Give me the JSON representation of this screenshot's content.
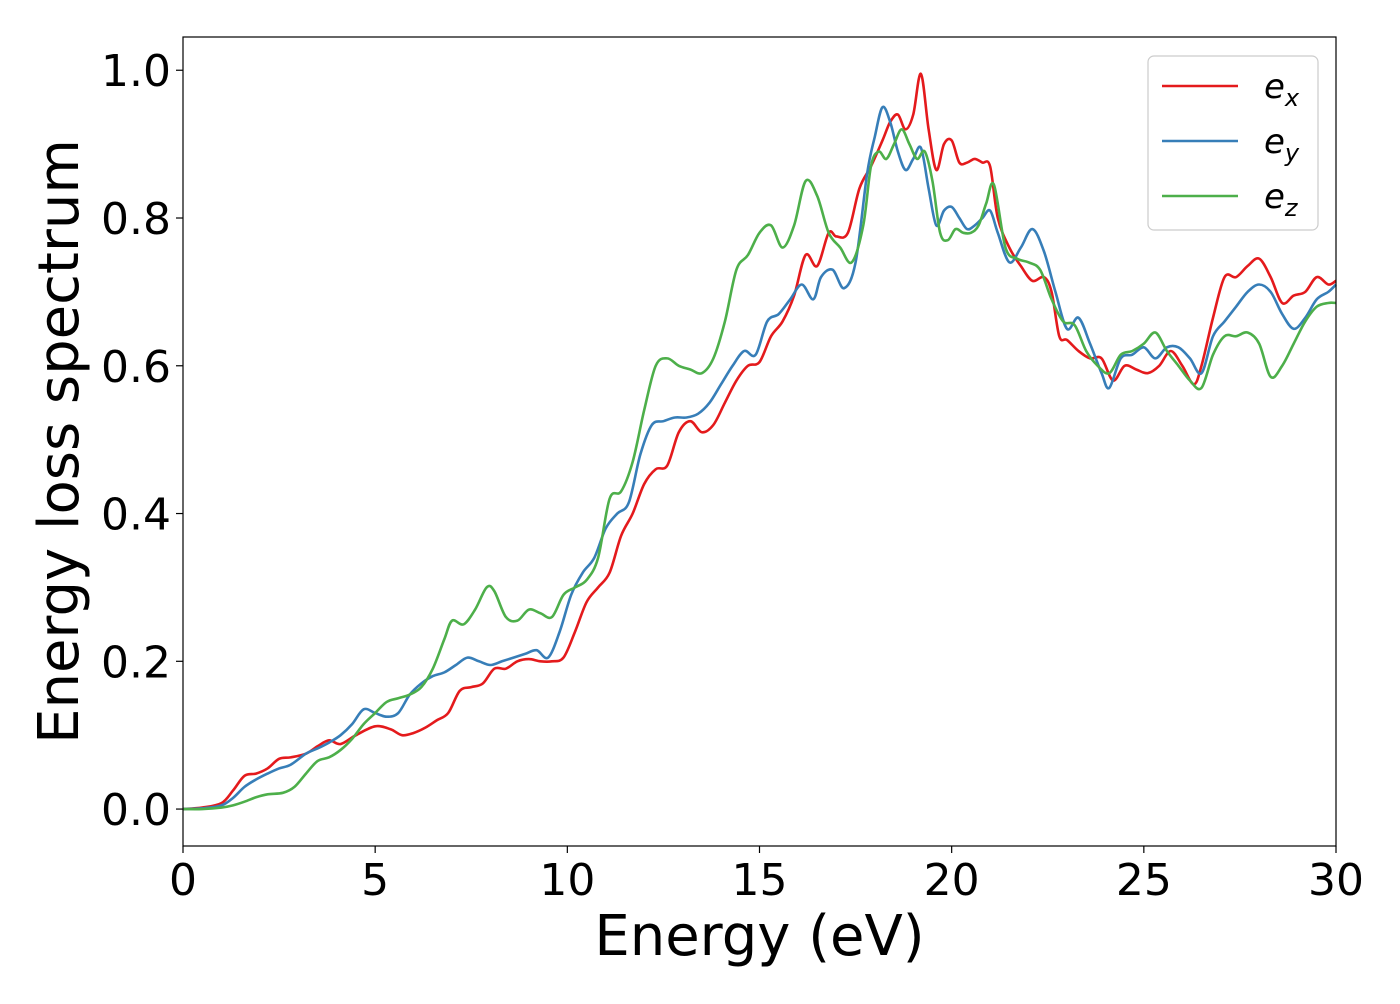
{
  "chart_data": {
    "type": "line",
    "xlabel": "Energy (eV)",
    "ylabel": "Energy loss spectrum",
    "xlim": [
      0,
      30
    ],
    "ylim": [
      -0.05,
      1.045
    ],
    "xticks": [
      0,
      5,
      10,
      15,
      20,
      25,
      30
    ],
    "xtick_labels": [
      "0",
      "5",
      "10",
      "15",
      "20",
      "25",
      "30"
    ],
    "yticks": [
      0.0,
      0.2,
      0.4,
      0.6,
      0.8,
      1.0
    ],
    "ytick_labels": [
      "0.0",
      "0.2",
      "0.4",
      "0.6",
      "0.8",
      "1.0"
    ],
    "grid": false,
    "legend_position": "top-right",
    "series": [
      {
        "name": "e_x",
        "legend_base": "e",
        "legend_sub": "x",
        "color": "#e41a1c",
        "x": [
          0,
          0.5,
          1,
          1.3,
          1.6,
          1.9,
          2.2,
          2.5,
          2.8,
          3.2,
          3.5,
          3.8,
          4.1,
          4.5,
          5.0,
          5.4,
          5.7,
          6.0,
          6.3,
          6.6,
          6.9,
          7.2,
          7.5,
          7.8,
          8.1,
          8.4,
          8.7,
          9.0,
          9.3,
          9.6,
          9.9,
          10.2,
          10.5,
          10.8,
          11.1,
          11.4,
          11.7,
          12.0,
          12.3,
          12.6,
          12.9,
          13.2,
          13.5,
          13.8,
          14.1,
          14.4,
          14.7,
          15.0,
          15.3,
          15.6,
          15.9,
          16.2,
          16.5,
          16.8,
          17.0,
          17.3,
          17.6,
          17.9,
          18.2,
          18.4,
          18.6,
          18.8,
          19.0,
          19.2,
          19.4,
          19.6,
          19.8,
          20.0,
          20.2,
          20.4,
          20.6,
          20.8,
          21.0,
          21.2,
          21.5,
          21.8,
          22.1,
          22.4,
          22.6,
          22.8,
          23.0,
          23.3,
          23.6,
          23.9,
          24.2,
          24.5,
          24.8,
          25.1,
          25.4,
          25.7,
          26.0,
          26.3,
          26.5,
          26.8,
          27.1,
          27.4,
          27.7,
          28.0,
          28.3,
          28.6,
          28.9,
          29.2,
          29.5,
          29.8,
          30.0
        ],
        "y": [
          0.0,
          0.002,
          0.008,
          0.025,
          0.045,
          0.048,
          0.055,
          0.068,
          0.07,
          0.075,
          0.085,
          0.093,
          0.088,
          0.1,
          0.112,
          0.108,
          0.1,
          0.103,
          0.11,
          0.12,
          0.13,
          0.16,
          0.165,
          0.17,
          0.19,
          0.19,
          0.2,
          0.203,
          0.2,
          0.2,
          0.205,
          0.24,
          0.28,
          0.3,
          0.32,
          0.37,
          0.4,
          0.44,
          0.46,
          0.465,
          0.51,
          0.525,
          0.51,
          0.52,
          0.55,
          0.58,
          0.6,
          0.605,
          0.64,
          0.66,
          0.695,
          0.75,
          0.735,
          0.78,
          0.775,
          0.78,
          0.84,
          0.87,
          0.905,
          0.93,
          0.94,
          0.92,
          0.94,
          0.995,
          0.92,
          0.865,
          0.9,
          0.905,
          0.875,
          0.875,
          0.88,
          0.875,
          0.87,
          0.8,
          0.76,
          0.735,
          0.715,
          0.72,
          0.7,
          0.64,
          0.635,
          0.62,
          0.61,
          0.61,
          0.58,
          0.6,
          0.595,
          0.59,
          0.6,
          0.62,
          0.6,
          0.575,
          0.6,
          0.665,
          0.72,
          0.72,
          0.735,
          0.745,
          0.72,
          0.685,
          0.695,
          0.7,
          0.72,
          0.71,
          0.715
        ]
      },
      {
        "name": "e_y",
        "legend_base": "e",
        "legend_sub": "y",
        "color": "#377eb8",
        "x": [
          0,
          0.5,
          1,
          1.3,
          1.6,
          1.9,
          2.2,
          2.5,
          2.8,
          3.2,
          3.5,
          3.8,
          4.1,
          4.4,
          4.7,
          5.0,
          5.3,
          5.6,
          5.9,
          6.2,
          6.5,
          6.8,
          7.1,
          7.4,
          7.7,
          8.0,
          8.3,
          8.6,
          8.9,
          9.2,
          9.5,
          9.8,
          10.1,
          10.4,
          10.7,
          11.0,
          11.3,
          11.6,
          11.9,
          12.2,
          12.5,
          12.8,
          13.1,
          13.4,
          13.7,
          14.0,
          14.3,
          14.6,
          14.9,
          15.2,
          15.5,
          15.8,
          16.1,
          16.4,
          16.6,
          16.9,
          17.2,
          17.5,
          17.8,
          18.0,
          18.2,
          18.4,
          18.6,
          18.8,
          19.0,
          19.2,
          19.4,
          19.6,
          19.8,
          20.0,
          20.2,
          20.4,
          20.6,
          20.8,
          21.0,
          21.2,
          21.5,
          21.8,
          22.1,
          22.4,
          22.7,
          23.0,
          23.3,
          23.6,
          23.9,
          24.1,
          24.4,
          24.7,
          25.0,
          25.3,
          25.6,
          25.9,
          26.2,
          26.5,
          26.8,
          27.1,
          27.4,
          27.7,
          28.0,
          28.3,
          28.6,
          28.9,
          29.2,
          29.5,
          29.8,
          30.0
        ],
        "y": [
          0.0,
          0.001,
          0.005,
          0.015,
          0.03,
          0.04,
          0.048,
          0.055,
          0.06,
          0.075,
          0.082,
          0.09,
          0.1,
          0.115,
          0.135,
          0.13,
          0.125,
          0.13,
          0.155,
          0.17,
          0.18,
          0.185,
          0.195,
          0.205,
          0.2,
          0.195,
          0.2,
          0.205,
          0.21,
          0.215,
          0.205,
          0.24,
          0.29,
          0.32,
          0.34,
          0.38,
          0.4,
          0.415,
          0.48,
          0.52,
          0.525,
          0.53,
          0.53,
          0.535,
          0.55,
          0.575,
          0.6,
          0.62,
          0.615,
          0.66,
          0.67,
          0.69,
          0.71,
          0.69,
          0.72,
          0.73,
          0.705,
          0.74,
          0.86,
          0.91,
          0.95,
          0.93,
          0.89,
          0.865,
          0.88,
          0.895,
          0.84,
          0.79,
          0.81,
          0.815,
          0.8,
          0.785,
          0.79,
          0.8,
          0.81,
          0.78,
          0.74,
          0.76,
          0.785,
          0.755,
          0.7,
          0.65,
          0.665,
          0.63,
          0.59,
          0.57,
          0.61,
          0.615,
          0.625,
          0.61,
          0.625,
          0.625,
          0.61,
          0.59,
          0.64,
          0.66,
          0.68,
          0.7,
          0.71,
          0.7,
          0.67,
          0.65,
          0.665,
          0.69,
          0.7,
          0.71
        ]
      },
      {
        "name": "e_z",
        "legend_base": "e",
        "legend_sub": "z",
        "color": "#4daf4a",
        "x": [
          0,
          0.5,
          1,
          1.3,
          1.6,
          1.9,
          2.2,
          2.6,
          2.9,
          3.2,
          3.5,
          3.8,
          4.1,
          4.4,
          4.7,
          5.0,
          5.3,
          5.6,
          5.9,
          6.2,
          6.5,
          6.8,
          7.0,
          7.3,
          7.6,
          7.9,
          8.1,
          8.4,
          8.7,
          9.0,
          9.3,
          9.6,
          9.9,
          10.2,
          10.5,
          10.8,
          11.1,
          11.4,
          11.7,
          12.0,
          12.3,
          12.6,
          12.9,
          13.2,
          13.5,
          13.8,
          14.1,
          14.4,
          14.7,
          15.0,
          15.3,
          15.6,
          15.9,
          16.2,
          16.5,
          16.8,
          17.1,
          17.4,
          17.7,
          17.9,
          18.1,
          18.3,
          18.5,
          18.7,
          18.9,
          19.1,
          19.3,
          19.5,
          19.7,
          19.9,
          20.1,
          20.3,
          20.5,
          20.7,
          20.9,
          21.1,
          21.4,
          21.7,
          22.0,
          22.3,
          22.6,
          22.9,
          23.2,
          23.5,
          23.8,
          24.1,
          24.4,
          24.7,
          25.0,
          25.3,
          25.6,
          25.9,
          26.2,
          26.5,
          26.8,
          27.1,
          27.4,
          27.7,
          28.0,
          28.3,
          28.6,
          28.9,
          29.2,
          29.5,
          29.8,
          30.0
        ],
        "y": [
          0.0,
          0.0,
          0.002,
          0.005,
          0.01,
          0.016,
          0.02,
          0.022,
          0.03,
          0.048,
          0.065,
          0.07,
          0.08,
          0.095,
          0.115,
          0.13,
          0.145,
          0.15,
          0.155,
          0.165,
          0.19,
          0.23,
          0.255,
          0.25,
          0.27,
          0.3,
          0.295,
          0.26,
          0.255,
          0.27,
          0.265,
          0.26,
          0.29,
          0.3,
          0.31,
          0.34,
          0.42,
          0.43,
          0.47,
          0.54,
          0.6,
          0.61,
          0.6,
          0.595,
          0.59,
          0.61,
          0.66,
          0.73,
          0.75,
          0.78,
          0.79,
          0.76,
          0.79,
          0.85,
          0.83,
          0.78,
          0.76,
          0.74,
          0.79,
          0.87,
          0.89,
          0.88,
          0.9,
          0.92,
          0.9,
          0.88,
          0.89,
          0.85,
          0.78,
          0.77,
          0.785,
          0.78,
          0.78,
          0.79,
          0.82,
          0.845,
          0.76,
          0.745,
          0.74,
          0.73,
          0.69,
          0.66,
          0.655,
          0.62,
          0.6,
          0.59,
          0.615,
          0.62,
          0.63,
          0.645,
          0.62,
          0.6,
          0.58,
          0.57,
          0.615,
          0.64,
          0.64,
          0.645,
          0.63,
          0.585,
          0.6,
          0.63,
          0.66,
          0.68,
          0.685,
          0.685
        ]
      }
    ]
  }
}
